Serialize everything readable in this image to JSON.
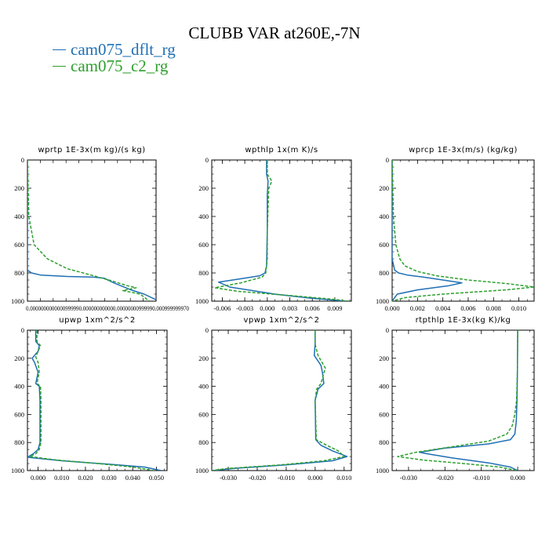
{
  "figure": {
    "title": "CLUBB VAR at260E,-7N",
    "legend": [
      {
        "label": "cam075_dflt_rg",
        "color": "#1f6fb4",
        "style": "solid"
      },
      {
        "label": "cam075_c2_rg",
        "color": "#2ca02c",
        "style": "dashed"
      }
    ]
  },
  "chart_data": [
    {
      "type": "line",
      "title": "wprtp  1E-3x(m kg)/(s kg)",
      "xlim": [
        0.0,
        9.7e-19
      ],
      "ylim": [
        1000,
        0
      ],
      "xticks": [],
      "xtick_label_text": "0.0000000000000999990.000000000000.00000000999990.000999999970",
      "yticks": [
        0,
        200,
        400,
        600,
        800,
        1000
      ],
      "series": [
        {
          "name": "cam075_dflt_rg",
          "x": [
            0.0,
            0.0,
            0.0,
            0.0,
            0.0,
            3e-20,
            1e-19,
            3e-19,
            5e-19,
            5.8e-19,
            6.5e-19,
            7.8e-19,
            8.8e-19,
            9.7e-19
          ],
          "y": [
            0,
            200,
            400,
            600,
            780,
            800,
            815,
            825,
            830,
            838,
            870,
            920,
            950,
            990
          ]
        },
        {
          "name": "cam075_c2_rg",
          "x": [
            0.0,
            1e-20,
            5e-20,
            1.5e-19,
            3e-19,
            5e-19,
            6.5e-19,
            7.5e-19,
            8.2e-19,
            7.2e-19,
            8.5e-19,
            9.2e-19
          ],
          "y": [
            0,
            400,
            600,
            700,
            770,
            820,
            860,
            890,
            905,
            925,
            950,
            1000
          ]
        }
      ]
    },
    {
      "type": "line",
      "title": "wpthlp  1x(m K)/s",
      "xlim": [
        -0.0074,
        0.0112
      ],
      "ylim": [
        1000,
        0
      ],
      "xticks": [
        -0.006,
        -0.003,
        0.0,
        0.003,
        0.006,
        0.009
      ],
      "xtick_labels": [
        "-0.006",
        "-0.003",
        "0.000",
        "0.003",
        "0.006",
        "0.009"
      ],
      "yticks": [
        0,
        200,
        400,
        600,
        800,
        1000
      ],
      "series": [
        {
          "name": "cam075_dflt_rg",
          "x": [
            -0.0001,
            -0.0001,
            0.0001,
            0.0,
            0.0,
            -0.0001,
            -0.0003,
            -0.001,
            -0.004,
            -0.0065,
            -0.005,
            0.001,
            0.006,
            0.0105
          ],
          "y": [
            0,
            100,
            150,
            250,
            500,
            750,
            800,
            820,
            845,
            865,
            900,
            950,
            980,
            1000
          ]
        },
        {
          "name": "cam075_c2_rg",
          "x": [
            0.0,
            0.0,
            0.0006,
            0.0002,
            0.0,
            0.0,
            -0.0002,
            -0.0007,
            -0.0035,
            -0.007,
            -0.004,
            0.003,
            0.0085,
            0.0108
          ],
          "y": [
            0,
            100,
            150,
            200,
            500,
            700,
            800,
            830,
            870,
            905,
            930,
            960,
            985,
            1000
          ]
        }
      ]
    },
    {
      "type": "line",
      "title": "wprcp  1E-3x(m/s) (kg/kg)",
      "xlim": [
        0.0,
        0.0112
      ],
      "ylim": [
        1000,
        0
      ],
      "xticks": [
        0.0,
        0.002,
        0.004,
        0.006,
        0.008,
        0.01
      ],
      "xtick_labels": [
        "0.000",
        "0.002",
        "0.004",
        "0.006",
        "0.008",
        "0.010"
      ],
      "yticks": [
        0,
        200,
        400,
        600,
        800,
        1000
      ],
      "series": [
        {
          "name": "cam075_dflt_rg",
          "x": [
            0.0,
            0.0,
            0.0,
            0.0002,
            0.0005,
            0.0012,
            0.0025,
            0.004,
            0.0055,
            0.0045,
            0.002,
            0.0004,
            0.0
          ],
          "y": [
            0,
            400,
            700,
            780,
            800,
            815,
            830,
            850,
            870,
            890,
            920,
            950,
            1000
          ]
        },
        {
          "name": "cam075_c2_rg",
          "x": [
            0.0,
            0.0001,
            0.0003,
            0.0006,
            0.001,
            0.002,
            0.0035,
            0.006,
            0.009,
            0.0112,
            0.009,
            0.004,
            0.001,
            0.0
          ],
          "y": [
            0,
            400,
            600,
            700,
            750,
            790,
            820,
            850,
            875,
            900,
            920,
            950,
            975,
            1000
          ]
        }
      ]
    },
    {
      "type": "line",
      "title": "upwp   1xm^2/s^2",
      "xlim": [
        -0.0045,
        0.0545
      ],
      "ylim": [
        1000,
        0
      ],
      "xticks": [
        0.0,
        0.01,
        0.02,
        0.03,
        0.04,
        0.05
      ],
      "xtick_labels": [
        "0.000",
        "0.010",
        "0.020",
        "0.030",
        "0.040",
        "0.050"
      ],
      "yticks": [
        0,
        200,
        400,
        600,
        800,
        1000
      ],
      "series": [
        {
          "name": "cam075_dflt_rg",
          "x": [
            -0.001,
            -0.001,
            0.0005,
            0.0,
            -0.0025,
            -0.0015,
            0.0,
            -0.001,
            0.0005,
            0.0008,
            0.0008,
            0.0,
            -0.002,
            -0.0045,
            0.01,
            0.03,
            0.045,
            0.052
          ],
          "y": [
            0,
            80,
            110,
            150,
            200,
            230,
            300,
            380,
            400,
            500,
            800,
            850,
            880,
            905,
            930,
            955,
            975,
            1000
          ]
        },
        {
          "name": "cam075_c2_rg",
          "x": [
            -0.0005,
            -0.0005,
            0.001,
            0.0,
            -0.001,
            0.0,
            0.0005,
            -0.0005,
            0.001,
            0.0012,
            0.0012,
            0.0005,
            -0.001,
            -0.0035,
            0.008,
            0.025,
            0.04,
            0.049
          ],
          "y": [
            0,
            80,
            110,
            150,
            190,
            230,
            300,
            380,
            400,
            500,
            800,
            850,
            880,
            900,
            925,
            950,
            975,
            1000
          ]
        }
      ]
    },
    {
      "type": "line",
      "title": "vpwp   1xm^2/s^2",
      "xlim": [
        -0.0357,
        0.0125
      ],
      "ylim": [
        1000,
        0
      ],
      "xticks": [
        -0.03,
        -0.02,
        -0.01,
        0.0,
        0.01
      ],
      "xtick_labels": [
        "-0.030",
        "-0.020",
        "-0.010",
        "0.000",
        "0.010"
      ],
      "yticks": [
        0,
        200,
        400,
        600,
        800,
        1000
      ],
      "series": [
        {
          "name": "cam075_dflt_rg",
          "x": [
            0.0,
            0.0,
            -0.0003,
            0.002,
            0.0025,
            0.003,
            0.001,
            0.0,
            0.0002,
            0.002,
            0.006,
            0.011,
            0.006,
            -0.01,
            -0.028,
            -0.0355
          ],
          "y": [
            0,
            100,
            180,
            250,
            300,
            380,
            420,
            500,
            780,
            820,
            860,
            900,
            930,
            960,
            985,
            1000
          ]
        },
        {
          "name": "cam075_c2_rg",
          "x": [
            0.0,
            0.0,
            0.001,
            0.0035,
            0.0028,
            0.002,
            0.0005,
            0.0,
            0.0004,
            0.004,
            0.008,
            0.01,
            0.003,
            -0.012,
            -0.03,
            -0.036
          ],
          "y": [
            0,
            100,
            180,
            270,
            320,
            380,
            420,
            500,
            780,
            820,
            860,
            900,
            930,
            960,
            985,
            1000
          ]
        }
      ]
    },
    {
      "type": "line",
      "title": "rtpthlp  1E-3x(kg K)/kg",
      "xlim": [
        -0.0345,
        0.0045
      ],
      "ylim": [
        1000,
        0
      ],
      "xticks": [
        -0.03,
        -0.02,
        -0.01,
        0.0
      ],
      "xtick_labels": [
        "-0.030",
        "-0.020",
        "-0.010",
        "0.000"
      ],
      "yticks": [
        0,
        200,
        400,
        600,
        800,
        1000
      ],
      "series": [
        {
          "name": "cam075_dflt_rg",
          "x": [
            0.0,
            -0.0001,
            -0.0002,
            -0.0004,
            -0.0008,
            -0.002,
            -0.008,
            -0.02,
            -0.027,
            -0.025,
            -0.018,
            -0.008,
            -0.002,
            0.0
          ],
          "y": [
            0,
            300,
            500,
            650,
            740,
            780,
            810,
            840,
            870,
            880,
            910,
            945,
            975,
            1000
          ]
        },
        {
          "name": "cam075_c2_rg",
          "x": [
            0.0,
            -0.0001,
            -0.0003,
            -0.0008,
            -0.0015,
            -0.003,
            -0.008,
            -0.018,
            -0.028,
            -0.033,
            -0.026,
            -0.015,
            -0.005,
            0.0
          ],
          "y": [
            0,
            300,
            500,
            600,
            680,
            740,
            790,
            830,
            870,
            900,
            925,
            950,
            975,
            1000
          ]
        }
      ]
    }
  ]
}
